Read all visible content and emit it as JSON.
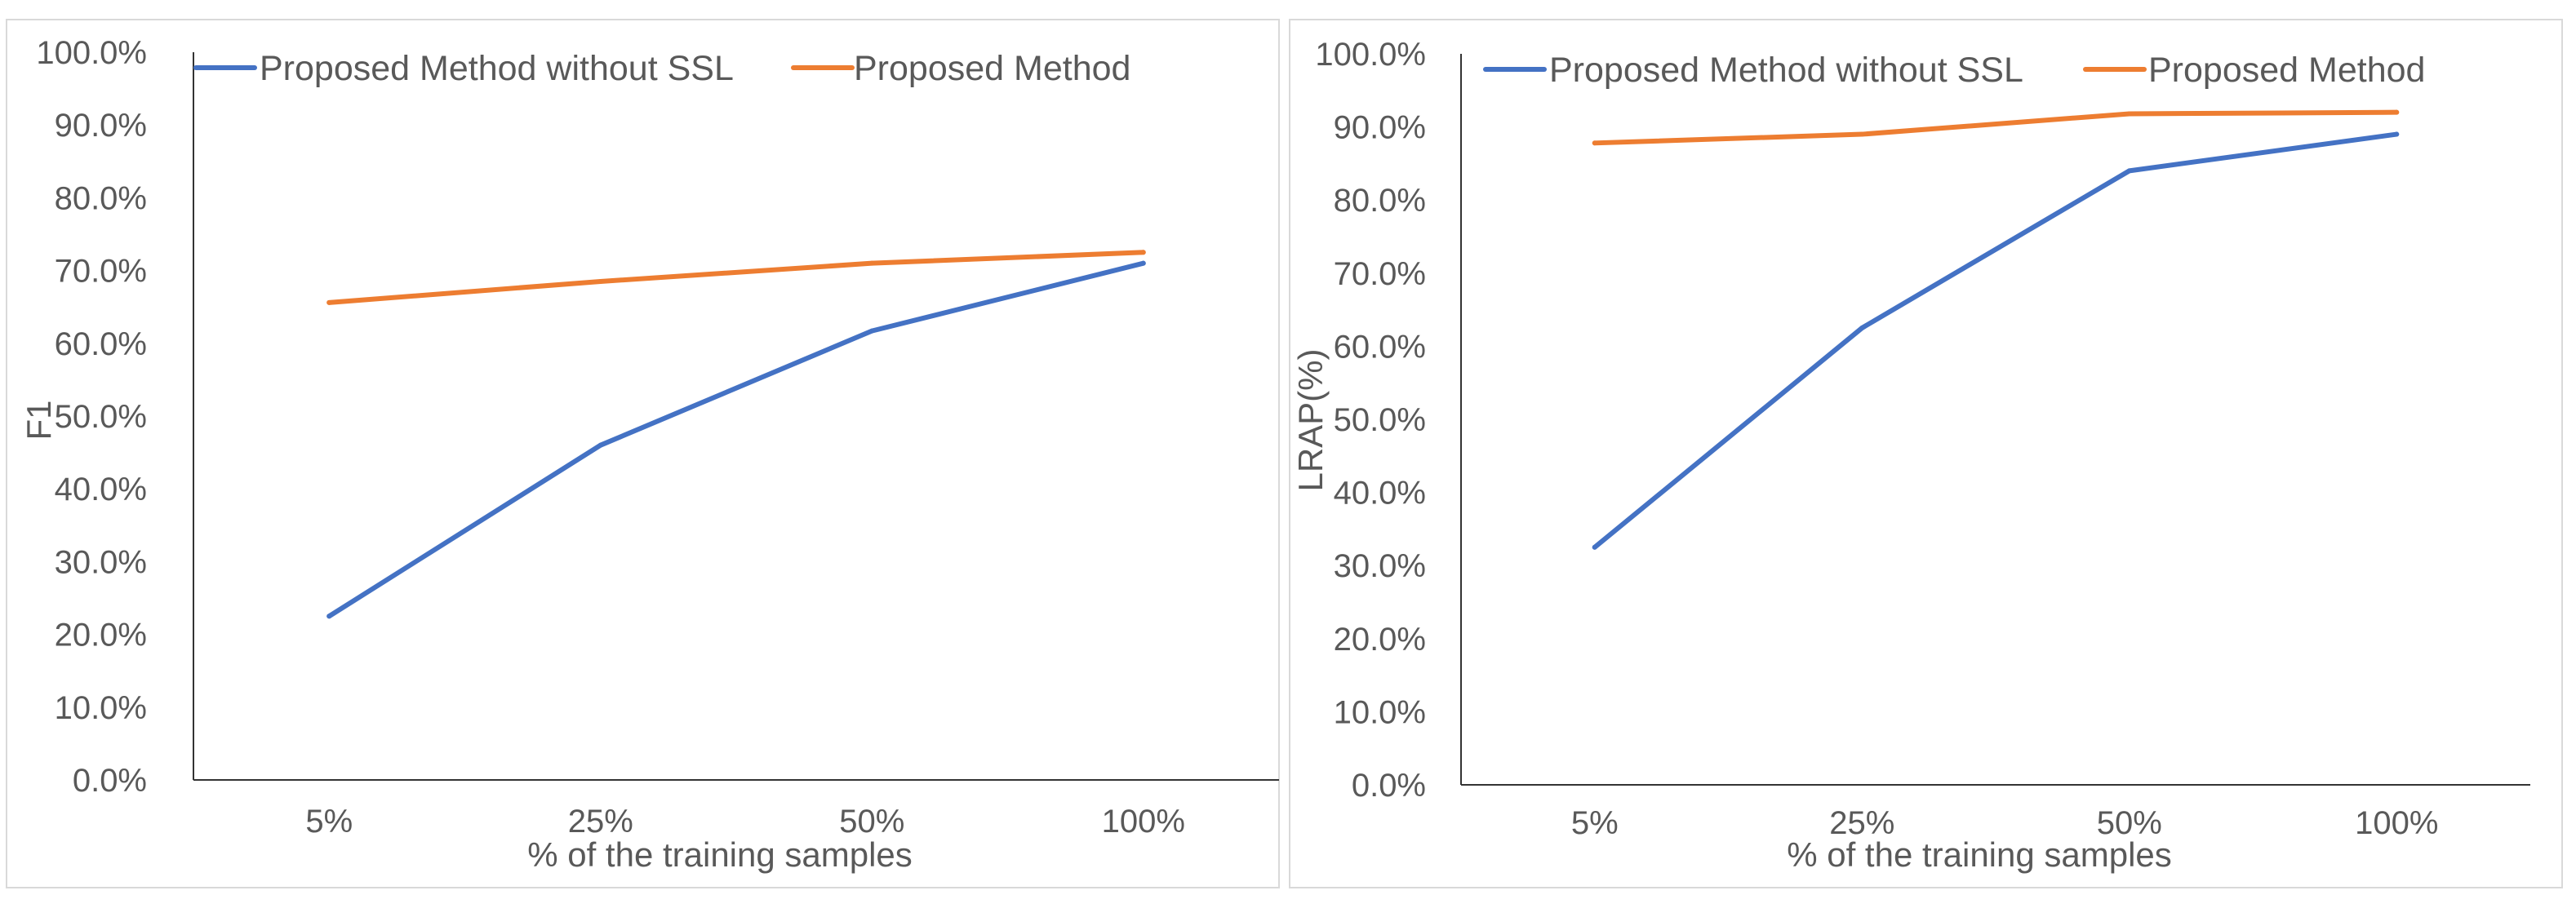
{
  "chart_data": [
    {
      "type": "line",
      "title": "",
      "xlabel": "% of the training samples",
      "ylabel": "F1",
      "categories": [
        "5%",
        "25%",
        "50%",
        "100%"
      ],
      "ylim": [
        0,
        100
      ],
      "yticks": [
        "0.0%",
        "10.0%",
        "20.0%",
        "30.0%",
        "40.0%",
        "50.0%",
        "60.0%",
        "70.0%",
        "80.0%",
        "90.0%",
        "100.0%"
      ],
      "grid": false,
      "legend_position": "top",
      "series": [
        {
          "name": "Proposed Method without SSL",
          "color": "#4472C4",
          "values": [
            22.5,
            46.0,
            61.7,
            71.0
          ]
        },
        {
          "name": "Proposed Method",
          "color": "#ED7D31",
          "values": [
            65.6,
            68.5,
            71.0,
            72.5
          ]
        }
      ]
    },
    {
      "type": "line",
      "title": "",
      "xlabel": "% of the training samples",
      "ylabel": "LRAP(%)",
      "categories": [
        "5%",
        "25%",
        "50%",
        "100%"
      ],
      "ylim": [
        0,
        100
      ],
      "yticks": [
        "0.0%",
        "10.0%",
        "20.0%",
        "30.0%",
        "40.0%",
        "50.0%",
        "60.0%",
        "70.0%",
        "80.0%",
        "90.0%",
        "100.0%"
      ],
      "grid": false,
      "legend_position": "top",
      "series": [
        {
          "name": "Proposed Method without SSL",
          "color": "#4472C4",
          "values": [
            32.5,
            62.5,
            84.0,
            89.0
          ]
        },
        {
          "name": "Proposed Method",
          "color": "#ED7D31",
          "values": [
            87.8,
            89.0,
            91.8,
            92.0
          ]
        }
      ]
    }
  ]
}
